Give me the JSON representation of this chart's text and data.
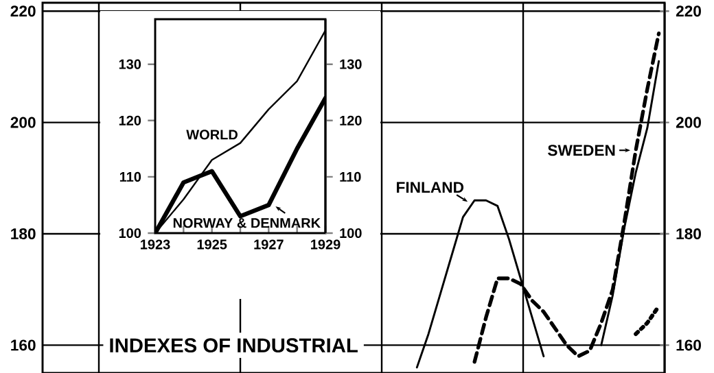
{
  "chart_data": [
    {
      "type": "line",
      "title": "INDEXES OF INDUSTRIAL",
      "categories": [
        null,
        null,
        null,
        null,
        null,
        null,
        null,
        null,
        null,
        null,
        null,
        null,
        null,
        null,
        null,
        null,
        null,
        null,
        null,
        null,
        null,
        null,
        null,
        null,
        null,
        null,
        null,
        null,
        null,
        null,
        null,
        null,
        null,
        null,
        null,
        null,
        null,
        null,
        null,
        null,
        null,
        null,
        null,
        null,
        null,
        null,
        null,
        null,
        null,
        null,
        null,
        null,
        null,
        null
      ],
      "series": [
        {
          "name": "FINLAND",
          "color": "#000000",
          "line_style": "solid",
          "values": [
            null,
            null,
            null,
            null,
            null,
            null,
            null,
            null,
            null,
            null,
            null,
            null,
            null,
            null,
            null,
            null,
            null,
            null,
            null,
            null,
            null,
            null,
            null,
            null,
            null,
            null,
            null,
            null,
            null,
            null,
            null,
            null,
            156,
            162,
            169,
            176,
            183,
            186,
            186,
            185,
            179,
            172,
            165,
            158,
            null,
            null,
            null,
            null,
            null,
            null,
            null,
            null,
            null,
            null
          ]
        },
        {
          "color": "#000000",
          "line_style": "solid",
          "values": [
            null,
            null,
            null,
            null,
            null,
            null,
            null,
            null,
            null,
            null,
            null,
            null,
            null,
            null,
            null,
            null,
            null,
            null,
            null,
            null,
            null,
            null,
            null,
            null,
            null,
            null,
            null,
            null,
            null,
            null,
            null,
            null,
            null,
            null,
            null,
            null,
            null,
            null,
            null,
            null,
            null,
            null,
            null,
            null,
            null,
            null,
            null,
            null,
            160,
            169,
            181,
            191,
            199,
            211
          ]
        },
        {
          "name": "SWEDEN",
          "color": "#000000",
          "line_style": "dashed",
          "values": [
            null,
            null,
            null,
            null,
            null,
            null,
            null,
            null,
            null,
            null,
            null,
            null,
            null,
            null,
            null,
            null,
            null,
            null,
            null,
            null,
            null,
            null,
            null,
            null,
            null,
            null,
            null,
            null,
            null,
            null,
            null,
            null,
            null,
            null,
            null,
            null,
            null,
            157,
            165,
            172,
            172,
            171,
            168,
            166,
            163,
            160,
            158,
            159,
            164,
            170,
            182,
            195,
            206,
            216
          ]
        },
        {
          "color": "#000000",
          "line_style": "dotted",
          "values": [
            null,
            null,
            null,
            null,
            null,
            null,
            null,
            null,
            null,
            null,
            null,
            null,
            null,
            null,
            null,
            null,
            null,
            null,
            null,
            null,
            null,
            null,
            null,
            null,
            null,
            null,
            null,
            null,
            null,
            null,
            null,
            null,
            null,
            null,
            null,
            null,
            null,
            null,
            null,
            null,
            null,
            null,
            null,
            null,
            null,
            null,
            null,
            null,
            null,
            null,
            null,
            162,
            164,
            167
          ]
        }
      ],
      "ylim": [
        155,
        221.5
      ],
      "yticks": [
        160,
        180,
        200,
        220
      ],
      "y2lim": [
        155,
        221.5
      ],
      "y2ticks": [
        160,
        180,
        200,
        220
      ],
      "grid": true,
      "marker": "none"
    },
    {
      "type": "line",
      "x": [
        1923,
        1924,
        1925,
        1926,
        1927,
        1928,
        1929
      ],
      "series": [
        {
          "name": "WORLD",
          "color": "#000000",
          "line_style": "solid",
          "values": [
            100,
            106,
            113,
            116,
            122,
            127,
            136
          ]
        },
        {
          "name": "NORWAY & DENMARK",
          "color": "#000000",
          "line_style": "solid",
          "values": [
            100,
            109,
            111,
            103,
            105,
            115,
            124
          ]
        }
      ],
      "xlim": [
        1923,
        1929
      ],
      "xticks": [
        1923,
        {
          "value": 1924,
          "label": null
        },
        1925,
        {
          "value": 1926,
          "label": null
        },
        1927,
        {
          "value": 1928,
          "label": null
        },
        1929
      ],
      "ylim": [
        100,
        138
      ],
      "yticks": [
        100,
        110,
        120,
        130
      ],
      "y2lim": [
        100,
        138
      ],
      "y2ticks": [
        100,
        110,
        120,
        130
      ],
      "marker": "none"
    }
  ]
}
